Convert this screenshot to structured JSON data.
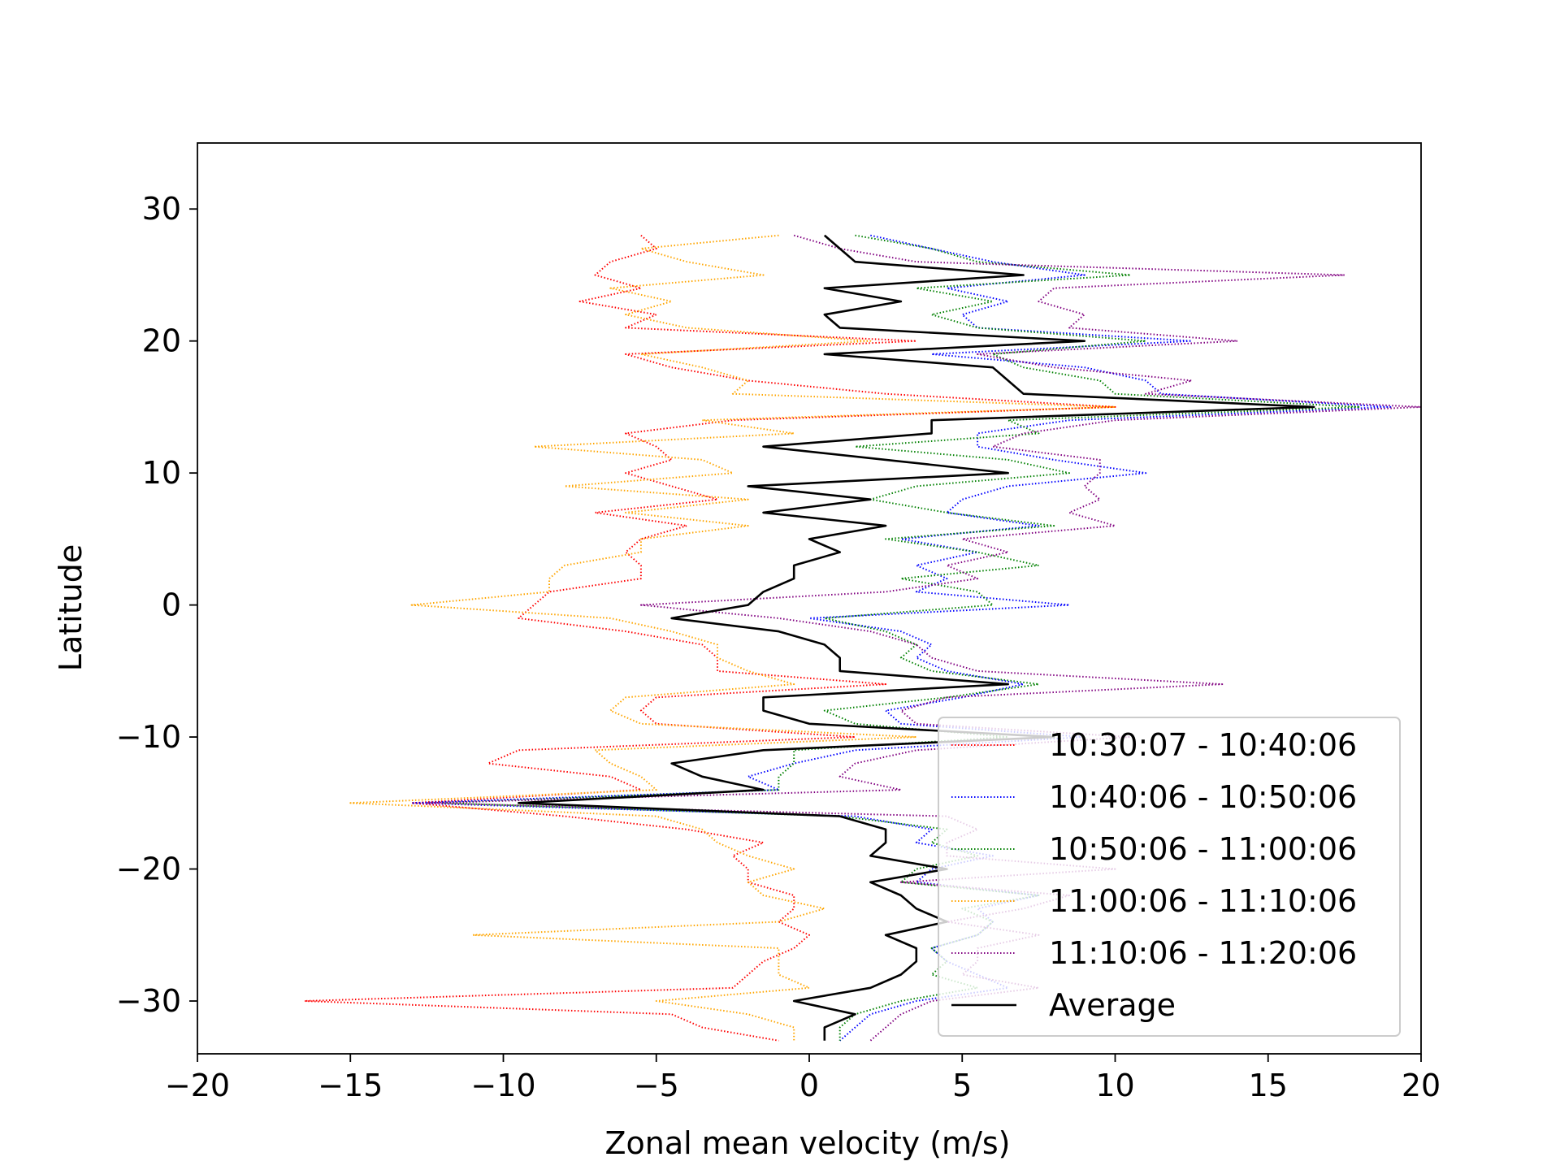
{
  "chart_data": {
    "type": "line",
    "title": "",
    "xlabel": "Zonal mean velocity (m/s)",
    "ylabel": "Latitude",
    "xlim": [
      -20,
      20
    ],
    "ylim": [
      -34,
      35
    ],
    "xticks": [
      -20,
      -15,
      -10,
      -5,
      0,
      5,
      10,
      15,
      20
    ],
    "xtick_labels": [
      "−20",
      "−15",
      "−10",
      "−5",
      "0",
      "5",
      "10",
      "15",
      "20"
    ],
    "yticks": [
      -30,
      -20,
      -10,
      0,
      10,
      20,
      30
    ],
    "ytick_labels": [
      "−30",
      "−20",
      "−10",
      "0",
      "10",
      "20",
      "30"
    ],
    "grid": false,
    "legend_position": "lower-right",
    "latitudes": [
      28,
      27,
      26,
      25,
      24,
      23,
      22,
      21,
      20,
      19,
      18,
      17,
      16,
      15,
      14,
      13,
      12,
      11,
      10,
      9,
      8,
      7,
      6,
      5,
      4,
      3,
      2,
      1,
      0,
      -1,
      -2,
      -3,
      -4,
      -5,
      -6,
      -7,
      -8,
      -9,
      -10,
      -11,
      -12,
      -13,
      -14,
      -15,
      -16,
      -17,
      -18,
      -19,
      -20,
      -21,
      -22,
      -23,
      -24,
      -25,
      -26,
      -27,
      -28,
      -29,
      -30,
      -31,
      -32,
      -33
    ],
    "series": [
      {
        "name": "10:30:07 - 10:40:06",
        "color": "#ff0000",
        "style": "dotted",
        "values": [
          -5.5,
          -5.0,
          -6.5,
          -7.0,
          -5.5,
          -7.5,
          -5.0,
          -6.0,
          3.5,
          -6.0,
          -4.5,
          -2.0,
          2.5,
          10.0,
          -2.5,
          -6.0,
          -5.0,
          -4.5,
          -6.0,
          -4.5,
          -3.0,
          -7.0,
          -4.0,
          -5.5,
          -6.0,
          -5.5,
          -5.5,
          -8.5,
          -9.0,
          -9.5,
          -6.0,
          -3.5,
          -3.0,
          -3.0,
          2.5,
          -5.0,
          -5.5,
          -5.0,
          1.5,
          -9.5,
          -10.5,
          -6.5,
          -5.5,
          -13.0,
          -8.0,
          -4.0,
          -1.5,
          -2.5,
          -2.0,
          -2.0,
          -0.5,
          -0.5,
          -1.0,
          0.0,
          -0.5,
          -1.5,
          -2.0,
          -2.5,
          -16.5,
          -4.5,
          -3.5,
          -1.0
        ]
      },
      {
        "name": "10:40:06 - 10:50:06",
        "color": "#0000ff",
        "style": "dotted",
        "values": [
          2.0,
          4.0,
          6.0,
          9.0,
          4.5,
          6.5,
          5.0,
          5.5,
          12.5,
          4.0,
          9.0,
          11.0,
          11.5,
          19.0,
          8.5,
          5.5,
          5.5,
          8.0,
          11.0,
          6.5,
          5.0,
          4.5,
          7.5,
          3.0,
          5.5,
          3.5,
          4.5,
          3.5,
          8.5,
          0.0,
          3.0,
          4.0,
          3.5,
          4.5,
          7.0,
          5.0,
          2.5,
          3.0,
          9.0,
          1.5,
          -0.5,
          -2.0,
          -1.0,
          -13.0,
          1.5,
          4.0,
          3.5,
          6.0,
          4.0,
          3.5,
          7.5,
          5.5,
          6.0,
          5.5,
          4.0,
          4.5,
          5.5,
          6.5,
          3.5,
          2.0,
          1.5,
          1.0
        ]
      },
      {
        "name": "10:50:06 - 11:00:06",
        "color": "#008000",
        "style": "dotted",
        "values": [
          1.5,
          4.0,
          5.5,
          10.5,
          3.5,
          6.0,
          4.0,
          5.5,
          11.0,
          6.0,
          7.0,
          9.5,
          10.0,
          18.0,
          6.5,
          7.5,
          1.5,
          6.5,
          8.5,
          3.5,
          2.0,
          4.5,
          8.0,
          2.5,
          5.5,
          7.5,
          3.0,
          5.5,
          6.0,
          0.5,
          2.5,
          3.5,
          3.0,
          4.0,
          7.5,
          4.5,
          0.5,
          1.5,
          6.5,
          -0.5,
          -0.5,
          -1.0,
          -1.0,
          -12.0,
          1.0,
          4.5,
          4.0,
          5.5,
          3.5,
          3.0,
          7.5,
          5.0,
          6.0,
          5.5,
          4.0,
          4.5,
          4.0,
          5.5,
          3.0,
          1.5,
          1.0,
          1.0
        ]
      },
      {
        "name": "11:00:06 - 11:10:06",
        "color": "#ffa500",
        "style": "dotted",
        "values": [
          -1.0,
          -5.5,
          -4.0,
          -1.5,
          -6.5,
          -4.5,
          -6.0,
          -4.0,
          2.0,
          -5.5,
          -3.5,
          -2.0,
          -2.5,
          10.0,
          -3.5,
          -0.5,
          -9.0,
          -3.5,
          -2.5,
          -8.0,
          -2.0,
          -6.0,
          -2.0,
          -5.5,
          -5.5,
          -8.0,
          -8.5,
          -8.5,
          -13.0,
          -6.5,
          -4.5,
          -3.0,
          -3.0,
          -2.0,
          -0.5,
          -6.0,
          -6.5,
          -5.5,
          3.5,
          -7.0,
          -6.5,
          -5.5,
          -5.0,
          -15.0,
          -5.0,
          -3.5,
          -3.0,
          -2.0,
          -0.5,
          -2.0,
          -1.5,
          0.5,
          -1.0,
          -11.0,
          -1.0,
          -1.0,
          -1.0,
          0.0,
          -5.0,
          -2.0,
          -0.5,
          -0.5
        ]
      },
      {
        "name": "11:10:06 - 11:20:06",
        "color": "#800080",
        "style": "dotted",
        "values": [
          -0.5,
          1.0,
          3.5,
          17.5,
          8.0,
          7.5,
          9.0,
          8.5,
          14.0,
          5.5,
          8.0,
          12.5,
          11.0,
          20.0,
          10.0,
          7.0,
          6.0,
          9.5,
          9.5,
          9.0,
          9.5,
          8.5,
          10.0,
          5.0,
          6.5,
          4.5,
          5.5,
          2.5,
          -5.5,
          -1.0,
          2.0,
          3.5,
          4.0,
          5.5,
          13.5,
          4.5,
          3.0,
          3.5,
          10.5,
          3.5,
          1.5,
          1.0,
          3.0,
          -12.5,
          4.5,
          5.5,
          4.5,
          4.5,
          10.0,
          3.0,
          8.5,
          7.0,
          4.5,
          7.5,
          5.5,
          5.5,
          5.0,
          7.5,
          4.0,
          3.0,
          2.5,
          2.0
        ]
      },
      {
        "name": "Average",
        "color": "#000000",
        "style": "solid",
        "values": [
          0.5,
          1.0,
          1.5,
          7.0,
          0.5,
          3.0,
          0.5,
          1.0,
          9.0,
          0.5,
          6.0,
          6.5,
          7.0,
          16.5,
          4.0,
          4.0,
          -1.5,
          2.5,
          6.5,
          -2.0,
          2.0,
          -1.5,
          2.5,
          0.0,
          1.0,
          -0.5,
          -0.5,
          -1.5,
          -2.0,
          -4.5,
          -1.0,
          0.5,
          1.0,
          1.0,
          6.5,
          -1.5,
          -1.5,
          0.0,
          8.0,
          -1.5,
          -4.5,
          -3.5,
          -1.5,
          -9.5,
          1.0,
          2.5,
          2.5,
          2.0,
          4.5,
          2.0,
          3.0,
          3.5,
          4.5,
          2.5,
          3.5,
          3.5,
          3.0,
          2.0,
          -0.5,
          1.5,
          0.5,
          0.5
        ]
      }
    ]
  }
}
